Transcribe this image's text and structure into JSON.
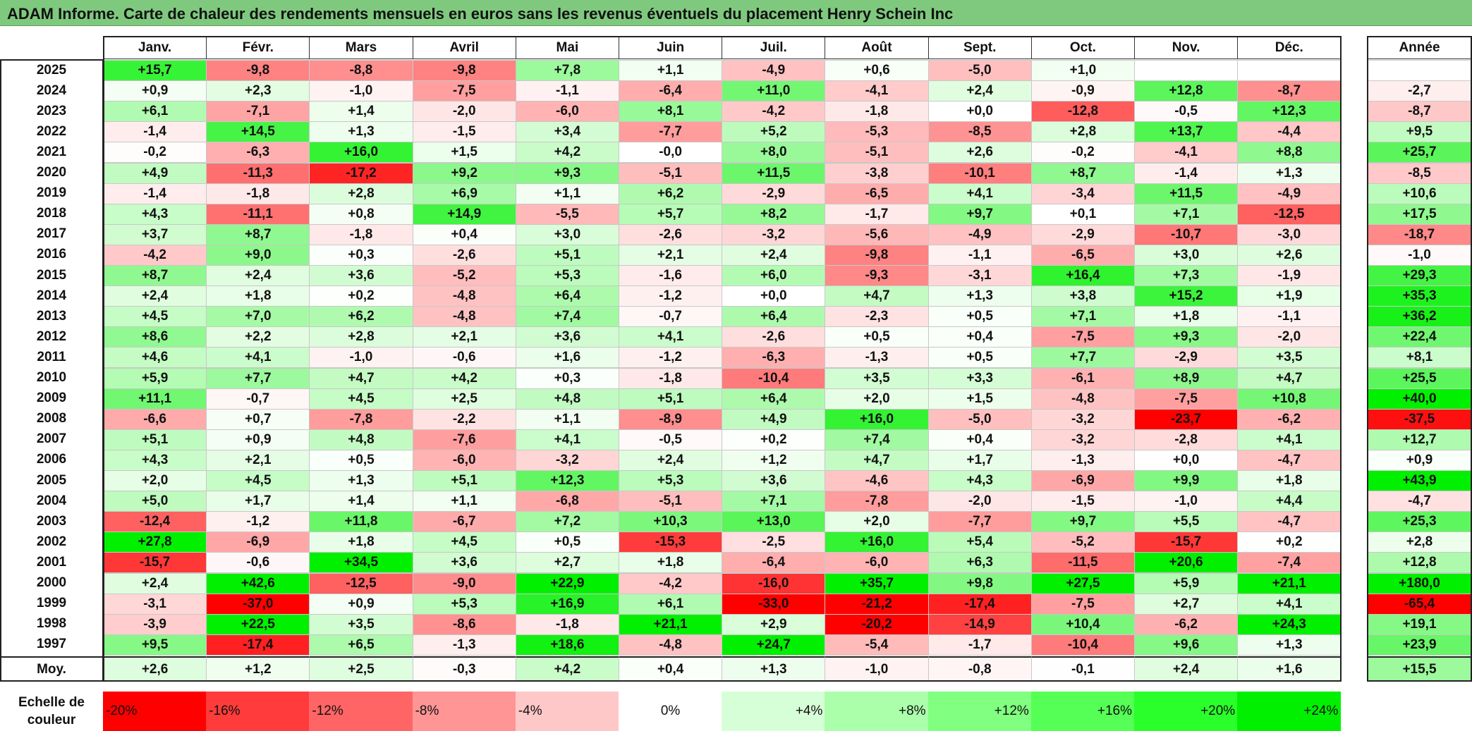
{
  "title": "ADAM Informe. Carte de chaleur des rendements mensuels en euros sans les revenus éventuels du placement Henry Schein Inc",
  "chart_data": {
    "type": "heatmap",
    "months": [
      "Janv.",
      "Févr.",
      "Mars",
      "Avril",
      "Mai",
      "Juin",
      "Juil.",
      "Août",
      "Sept.",
      "Oct.",
      "Nov.",
      "Déc."
    ],
    "year_header": "Année",
    "rows": [
      {
        "year": "2025",
        "values": [
          "+15,7",
          "-9,8",
          "-8,8",
          "-9,8",
          "+7,8",
          "+1,1",
          "-4,9",
          "+0,6",
          "-5,0",
          "+1,0",
          "",
          ""
        ],
        "annual": ""
      },
      {
        "year": "2024",
        "values": [
          "+0,9",
          "+2,3",
          "-1,0",
          "-7,5",
          "-1,1",
          "-6,4",
          "+11,0",
          "-4,1",
          "+2,4",
          "-0,9",
          "+12,8",
          "-8,7"
        ],
        "annual": "-2,7"
      },
      {
        "year": "2023",
        "values": [
          "+6,1",
          "-7,1",
          "+1,4",
          "-2,0",
          "-6,0",
          "+8,1",
          "-4,2",
          "-1,8",
          "+0,0",
          "-12,8",
          "-0,5",
          "+12,3"
        ],
        "annual": "-8,7"
      },
      {
        "year": "2022",
        "values": [
          "-1,4",
          "+14,5",
          "+1,3",
          "-1,5",
          "+3,4",
          "-7,7",
          "+5,2",
          "-5,3",
          "-8,5",
          "+2,8",
          "+13,7",
          "-4,4"
        ],
        "annual": "+9,5"
      },
      {
        "year": "2021",
        "values": [
          "-0,2",
          "-6,3",
          "+16,0",
          "+1,5",
          "+4,2",
          "-0,0",
          "+8,0",
          "-5,1",
          "+2,6",
          "-0,2",
          "-4,1",
          "+8,8"
        ],
        "annual": "+25,7"
      },
      {
        "year": "2020",
        "values": [
          "+4,9",
          "-11,3",
          "-17,2",
          "+9,2",
          "+9,3",
          "-5,1",
          "+11,5",
          "-3,8",
          "-10,1",
          "+8,7",
          "-1,4",
          "+1,3"
        ],
        "annual": "-8,5"
      },
      {
        "year": "2019",
        "values": [
          "-1,4",
          "-1,8",
          "+2,8",
          "+6,9",
          "+1,1",
          "+6,2",
          "-2,9",
          "-6,5",
          "+4,1",
          "-3,4",
          "+11,5",
          "-4,9"
        ],
        "annual": "+10,6"
      },
      {
        "year": "2018",
        "values": [
          "+4,3",
          "-11,1",
          "+0,8",
          "+14,9",
          "-5,5",
          "+5,7",
          "+8,2",
          "-1,7",
          "+9,7",
          "+0,1",
          "+7,1",
          "-12,5"
        ],
        "annual": "+17,5"
      },
      {
        "year": "2017",
        "values": [
          "+3,7",
          "+8,7",
          "-1,8",
          "+0,4",
          "+3,0",
          "-2,6",
          "-3,2",
          "-5,6",
          "-4,9",
          "-2,9",
          "-10,7",
          "-3,0"
        ],
        "annual": "-18,7"
      },
      {
        "year": "2016",
        "values": [
          "-4,2",
          "+9,0",
          "+0,3",
          "-2,6",
          "+5,1",
          "+2,1",
          "+2,4",
          "-9,8",
          "-1,1",
          "-6,5",
          "+3,0",
          "+2,6"
        ],
        "annual": "-1,0"
      },
      {
        "year": "2015",
        "values": [
          "+8,7",
          "+2,4",
          "+3,6",
          "-5,2",
          "+5,3",
          "-1,6",
          "+6,0",
          "-9,3",
          "-3,1",
          "+16,4",
          "+7,3",
          "-1,9"
        ],
        "annual": "+29,3"
      },
      {
        "year": "2014",
        "values": [
          "+2,4",
          "+1,8",
          "+0,2",
          "-4,8",
          "+6,4",
          "-1,2",
          "+0,0",
          "+4,7",
          "+1,3",
          "+3,8",
          "+15,2",
          "+1,9"
        ],
        "annual": "+35,3"
      },
      {
        "year": "2013",
        "values": [
          "+4,5",
          "+7,0",
          "+6,2",
          "-4,8",
          "+7,4",
          "-0,7",
          "+6,4",
          "-2,3",
          "+0,5",
          "+7,1",
          "+1,8",
          "-1,1"
        ],
        "annual": "+36,2"
      },
      {
        "year": "2012",
        "values": [
          "+8,6",
          "+2,2",
          "+2,8",
          "+2,1",
          "+3,6",
          "+4,1",
          "-2,6",
          "+0,5",
          "+0,4",
          "-7,5",
          "+9,3",
          "-2,0"
        ],
        "annual": "+22,4"
      },
      {
        "year": "2011",
        "values": [
          "+4,6",
          "+4,1",
          "-1,0",
          "-0,6",
          "+1,6",
          "-1,2",
          "-6,3",
          "-1,3",
          "+0,5",
          "+7,7",
          "-2,9",
          "+3,5"
        ],
        "annual": "+8,1"
      },
      {
        "year": "2010",
        "values": [
          "+5,9",
          "+7,7",
          "+4,7",
          "+4,2",
          "+0,3",
          "-1,8",
          "-10,4",
          "+3,5",
          "+3,3",
          "-6,1",
          "+8,9",
          "+4,7"
        ],
        "annual": "+25,5"
      },
      {
        "year": "2009",
        "values": [
          "+11,1",
          "-0,7",
          "+4,5",
          "+2,5",
          "+4,8",
          "+5,1",
          "+6,4",
          "+2,0",
          "+1,5",
          "-4,8",
          "-7,5",
          "+10,8"
        ],
        "annual": "+40,0"
      },
      {
        "year": "2008",
        "values": [
          "-6,6",
          "+0,7",
          "-7,8",
          "-2,2",
          "+1,1",
          "-8,9",
          "+4,9",
          "+16,0",
          "-5,0",
          "-3,2",
          "-23,7",
          "-6,2"
        ],
        "annual": "-37,5"
      },
      {
        "year": "2007",
        "values": [
          "+5,1",
          "+0,9",
          "+4,8",
          "-7,6",
          "+4,1",
          "-0,5",
          "+0,2",
          "+7,4",
          "+0,4",
          "-3,2",
          "-2,8",
          "+4,1"
        ],
        "annual": "+12,7"
      },
      {
        "year": "2006",
        "values": [
          "+4,3",
          "+2,1",
          "+0,5",
          "-6,0",
          "-3,2",
          "+2,4",
          "+1,2",
          "+4,7",
          "+1,7",
          "-1,3",
          "+0,0",
          "-4,7"
        ],
        "annual": "+0,9"
      },
      {
        "year": "2005",
        "values": [
          "+2,0",
          "+4,5",
          "+1,3",
          "+5,1",
          "+12,3",
          "+5,3",
          "+3,6",
          "-4,6",
          "+4,3",
          "-6,9",
          "+9,9",
          "+1,8"
        ],
        "annual": "+43,9"
      },
      {
        "year": "2004",
        "values": [
          "+5,0",
          "+1,7",
          "+1,4",
          "+1,1",
          "-6,8",
          "-5,1",
          "+7,1",
          "-7,8",
          "-2,0",
          "-1,5",
          "-1,0",
          "+4,4"
        ],
        "annual": "-4,7"
      },
      {
        "year": "2003",
        "values": [
          "-12,4",
          "-1,2",
          "+11,8",
          "-6,7",
          "+7,2",
          "+10,3",
          "+13,0",
          "+2,0",
          "-7,7",
          "+9,7",
          "+5,5",
          "-4,7"
        ],
        "annual": "+25,3"
      },
      {
        "year": "2002",
        "values": [
          "+27,8",
          "-6,9",
          "+1,8",
          "+4,5",
          "+0,5",
          "-15,3",
          "-2,5",
          "+16,0",
          "+5,4",
          "-5,2",
          "-15,7",
          "+0,2"
        ],
        "annual": "+2,8"
      },
      {
        "year": "2001",
        "values": [
          "-15,7",
          "-0,6",
          "+34,5",
          "+3,6",
          "+2,7",
          "+1,8",
          "-6,4",
          "-6,0",
          "+6,3",
          "-11,5",
          "+20,6",
          "-7,4"
        ],
        "annual": "+12,8"
      },
      {
        "year": "2000",
        "values": [
          "+2,4",
          "+42,6",
          "-12,5",
          "-9,0",
          "+22,9",
          "-4,2",
          "-16,0",
          "+35,7",
          "+9,8",
          "+27,5",
          "+5,9",
          "+21,1"
        ],
        "annual": "+180,0"
      },
      {
        "year": "1999",
        "values": [
          "-3,1",
          "-37,0",
          "+0,9",
          "+5,3",
          "+16,9",
          "+6,1",
          "-33,0",
          "-21,2",
          "-17,4",
          "-7,5",
          "+2,7",
          "+4,1"
        ],
        "annual": "-65,4"
      },
      {
        "year": "1998",
        "values": [
          "-3,9",
          "+22,5",
          "+3,5",
          "-8,6",
          "-1,8",
          "+21,1",
          "+2,9",
          "-20,2",
          "-14,9",
          "+10,4",
          "-6,2",
          "+24,3"
        ],
        "annual": "+19,1"
      },
      {
        "year": "1997",
        "values": [
          "+9,5",
          "-17,4",
          "+6,5",
          "-1,3",
          "+18,6",
          "-4,8",
          "+24,7",
          "-5,4",
          "-1,7",
          "-10,4",
          "+9,6",
          "+1,3"
        ],
        "annual": "+23,9"
      }
    ],
    "average": {
      "label": "Moy.",
      "values": [
        "+2,6",
        "+1,2",
        "+2,5",
        "-0,3",
        "+4,2",
        "+0,4",
        "+1,3",
        "-1,0",
        "-0,8",
        "-0,1",
        "+2,4",
        "+1,6"
      ],
      "annual": "+15,5"
    },
    "legend": {
      "label": "Echelle de couleur",
      "entries": [
        {
          "text": "-20%",
          "value": -20,
          "color": "#ff0000"
        },
        {
          "text": "-16%",
          "value": -16,
          "color": "#ff3b3b"
        },
        {
          "text": "-12%",
          "value": -12,
          "color": "#ff6565"
        },
        {
          "text": "-8%",
          "value": -8,
          "color": "#ff9595"
        },
        {
          "text": "-4%",
          "value": -4,
          "color": "#ffc8c8"
        },
        {
          "text": "0%",
          "value": 0,
          "color": "#ffffff"
        },
        {
          "text": "+4%",
          "value": 4,
          "color": "#d7ffd7"
        },
        {
          "text": "+8%",
          "value": 8,
          "color": "#abffab"
        },
        {
          "text": "+12%",
          "value": 12,
          "color": "#80ff80"
        },
        {
          "text": "+16%",
          "value": 16,
          "color": "#55ff55"
        },
        {
          "text": "+20%",
          "value": 20,
          "color": "#2bff2b"
        },
        {
          "text": "+24%",
          "value": 24,
          "color": "#00f000"
        }
      ]
    }
  }
}
